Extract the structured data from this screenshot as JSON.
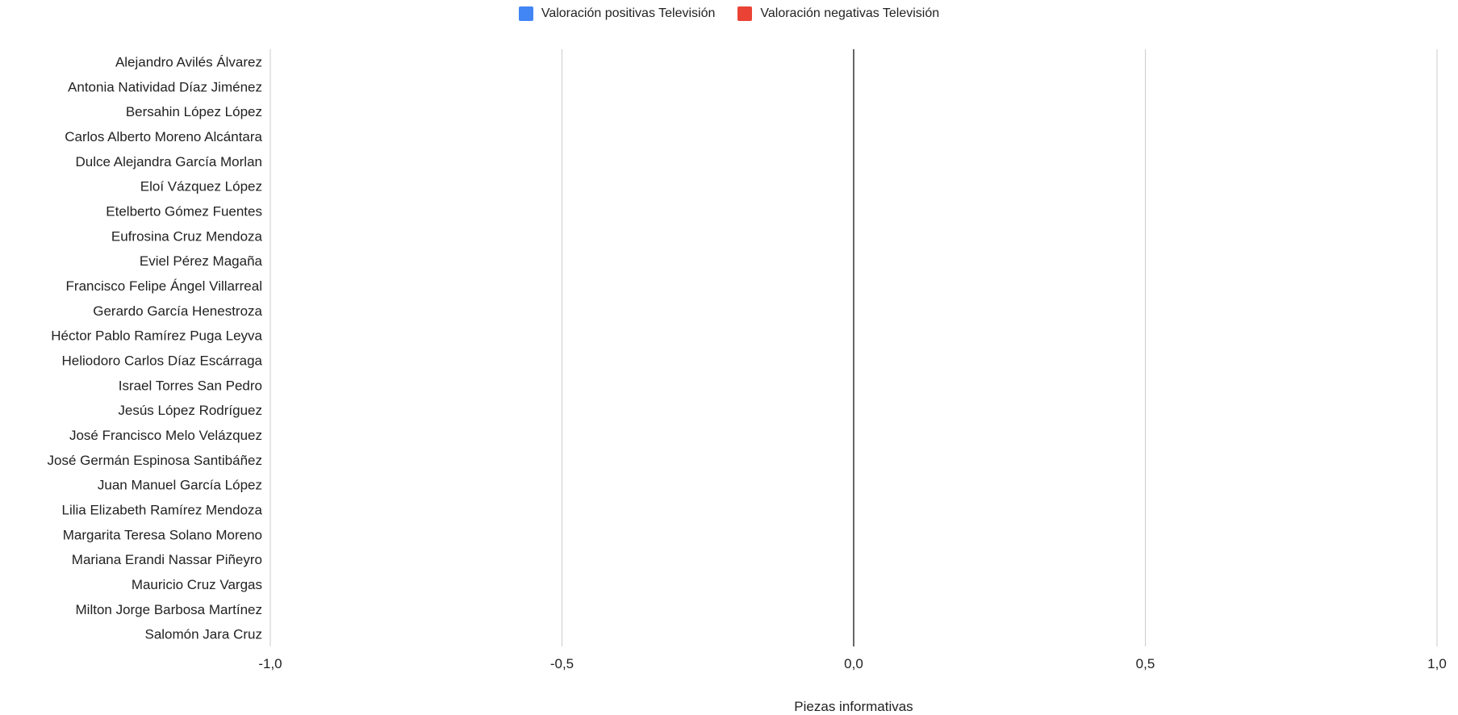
{
  "chart_data": {
    "type": "bar",
    "orientation": "horizontal",
    "categories": [
      "Alejandro Avilés Álvarez",
      "Antonia Natividad Díaz Jiménez",
      "Bersahin López López",
      "Carlos Alberto Moreno Alcántara",
      "Dulce Alejandra García Morlan",
      "Eloí Vázquez López",
      "Etelberto Gómez Fuentes",
      "Eufrosina Cruz Mendoza",
      "Eviel Pérez Magaña",
      "Francisco Felipe Ángel Villarreal",
      "Gerardo García Henestroza",
      "Héctor Pablo Ramírez Puga Leyva",
      "Heliodoro Carlos Díaz Escárraga",
      "Israel Torres San Pedro",
      "Jesús López Rodríguez",
      "José Francisco Melo Velázquez",
      "José Germán Espinosa Santibáñez",
      "Juan Manuel García López",
      "Lilia Elizabeth Ramírez Mendoza",
      "Margarita Teresa Solano Moreno",
      "Mariana Erandi Nassar Piñeyro",
      "Mauricio Cruz Vargas",
      "Milton Jorge Barbosa Martínez",
      "Salomón Jara Cruz"
    ],
    "series": [
      {
        "name": "Valoración positivas Televisión",
        "color": "#4285f4",
        "values": [
          0,
          0,
          0,
          0,
          0,
          0,
          0,
          0,
          0,
          0,
          0,
          0,
          0,
          0,
          0,
          0,
          0,
          0,
          0,
          0,
          0,
          0,
          0,
          0
        ]
      },
      {
        "name": "Valoración negativas Televisión",
        "color": "#ea4335",
        "values": [
          0,
          0,
          0,
          0,
          0,
          0,
          0,
          0,
          0,
          0,
          0,
          0,
          0,
          0,
          0,
          0,
          0,
          0,
          0,
          0,
          0,
          0,
          0,
          0
        ]
      }
    ],
    "xlim": [
      -1,
      1
    ],
    "xticks": [
      -1,
      -0.5,
      0,
      0.5,
      1
    ],
    "xtick_labels": [
      "-1,0",
      "-0,5",
      "0,0",
      "0,5",
      "1,0"
    ],
    "xlabel": "Piezas informativas",
    "ylabel": "",
    "title": "",
    "grid": true,
    "legend_position": "top"
  }
}
